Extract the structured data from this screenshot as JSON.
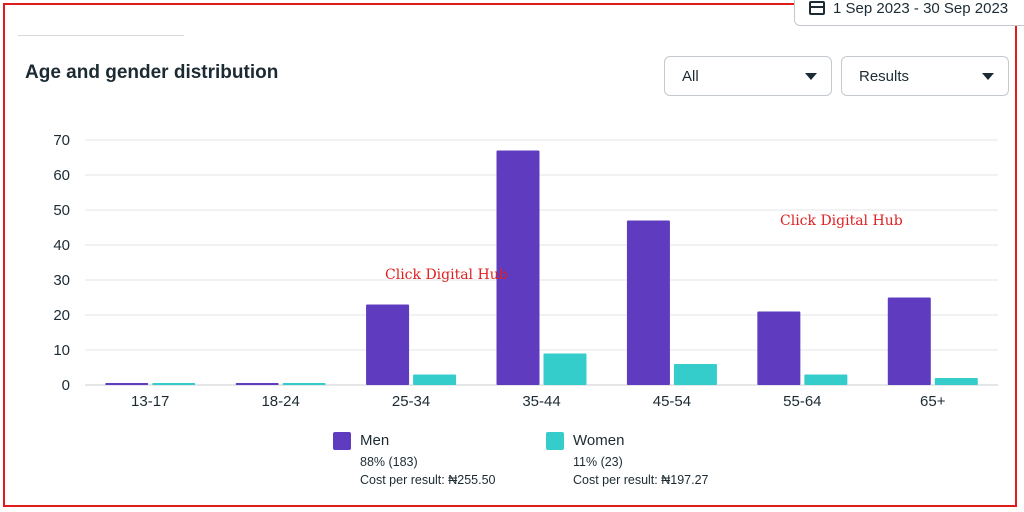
{
  "date_range": "1 Sep 2023 - 30 Sep 2023",
  "title": "Age and gender distribution",
  "filters": {
    "audience": "All",
    "metric": "Results"
  },
  "watermark": "Click Digital Hub",
  "legend": [
    {
      "name": "Men",
      "share": "88% (183)",
      "cost": "Cost per result: ₦255.50",
      "color": "#5e3bbf"
    },
    {
      "name": "Women",
      "share": "11% (23)",
      "cost": "Cost per result: ₦197.27",
      "color": "#35cccc"
    }
  ],
  "chart_data": {
    "type": "bar",
    "categories": [
      "13-17",
      "18-24",
      "25-34",
      "35-44",
      "45-54",
      "55-64",
      "65+"
    ],
    "series": [
      {
        "name": "Men",
        "values": [
          0,
          0,
          23,
          67,
          47,
          21,
          25
        ],
        "color": "#5e3bbf"
      },
      {
        "name": "Women",
        "values": [
          0,
          0,
          3,
          9,
          6,
          3,
          2
        ],
        "color": "#35cccc"
      }
    ],
    "ylim": [
      0,
      70
    ],
    "yticks": [
      0,
      10,
      20,
      30,
      40,
      50,
      60,
      70
    ],
    "grid": true
  }
}
